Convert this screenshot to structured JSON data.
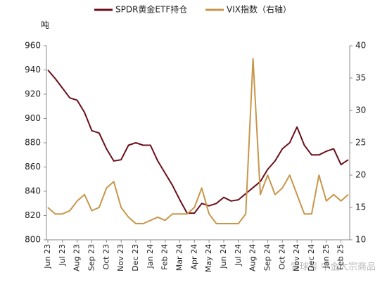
{
  "chart_data": {
    "type": "line",
    "y_label": "吨",
    "watermark": "雪球号 中金大宗商品",
    "categories": [
      "Jun 23",
      null,
      "Jul 23",
      null,
      "Aug 23",
      null,
      "Sep 23",
      null,
      "Oct 23",
      null,
      "Nov 23",
      null,
      "Dec 23",
      null,
      "Jan 24",
      null,
      "Feb 24",
      null,
      "Mar 24",
      null,
      "Apr 24",
      null,
      "May 24",
      null,
      "Jun 24",
      null,
      "Jul 24",
      null,
      "Aug 24",
      null,
      "Sep 24",
      null,
      "Oct 24",
      null,
      "Nov 24",
      null,
      "Dec 24",
      null,
      "Jan 25",
      null,
      "Feb 25",
      null
    ],
    "series": [
      {
        "name": "SPDR黄金ETF持仓",
        "color": "#6b0f1a",
        "axis": "y",
        "values": [
          940,
          933,
          925,
          917,
          915,
          905,
          890,
          888,
          875,
          865,
          866,
          878,
          880,
          878,
          878,
          865,
          855,
          845,
          833,
          822,
          822,
          830,
          828,
          830,
          835,
          832,
          833,
          838,
          843,
          848,
          858,
          865,
          875,
          880,
          893,
          878,
          870,
          870,
          873,
          875,
          862,
          866
        ]
      },
      {
        "name": "VIX指数（右轴）",
        "color": "#c8964b",
        "axis": "y2",
        "values": [
          15,
          14,
          14,
          14.5,
          16,
          17,
          14.5,
          15,
          18,
          19,
          15,
          13.5,
          12.5,
          12.5,
          13,
          13.5,
          13,
          14,
          14,
          14,
          15,
          18,
          14,
          12.5,
          12.5,
          12.5,
          12.5,
          14,
          38,
          17,
          20,
          17,
          18,
          20,
          17,
          14,
          14,
          20,
          16,
          17,
          16,
          17
        ]
      }
    ],
    "ylim": [
      800,
      960
    ],
    "yticks": [
      800,
      820,
      840,
      860,
      880,
      900,
      920,
      940,
      960
    ],
    "y2lim": [
      10,
      40
    ],
    "y2ticks": [
      10,
      15,
      20,
      25,
      30,
      35,
      40
    ]
  }
}
